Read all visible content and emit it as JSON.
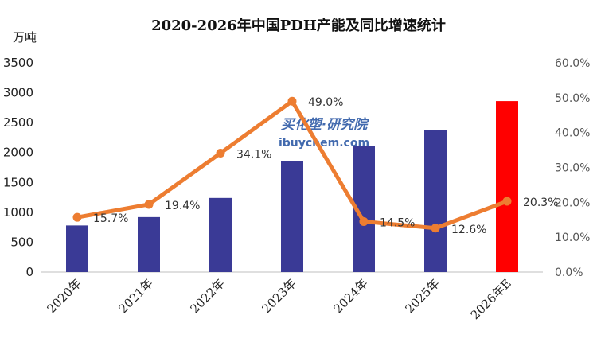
{
  "chart_data": {
    "type": "bar",
    "title": "2020-2026年中国PDH产能及同比增速统计",
    "ylabel": "万吨",
    "categories": [
      "2020年",
      "2021年",
      "2022年",
      "2023年",
      "2024年",
      "2025年",
      "2026年E"
    ],
    "series": [
      {
        "type": "bar",
        "values": [
          780,
          920,
          1240,
          1850,
          2110,
          2380,
          2860
        ],
        "colors": [
          "#3a3a96",
          "#3a3a96",
          "#3a3a96",
          "#3a3a96",
          "#3a3a96",
          "#3a3a96",
          "#ff0000"
        ]
      },
      {
        "type": "line",
        "values": [
          15.7,
          19.4,
          34.1,
          49.0,
          14.5,
          12.6,
          20.3
        ],
        "labels": [
          "15.7%",
          "19.4%",
          "34.1%",
          "49.0%",
          "14.5%",
          "12.6%",
          "20.3%"
        ],
        "color": "#ed7d31",
        "axis": "right"
      }
    ],
    "ylim": [
      0,
      3500
    ],
    "yticks": [
      "0",
      "500",
      "1000",
      "1500",
      "2000",
      "2500",
      "3000",
      "3500"
    ],
    "y2lim": [
      0,
      60
    ],
    "y2ticks": [
      "0.0%",
      "10.0%",
      "20.0%",
      "30.0%",
      "40.0%",
      "50.0%",
      "60.0%"
    ],
    "grid": false,
    "legend": "none"
  },
  "watermark": {
    "cn": "买化塑·研究院",
    "en": "ibuychem.com"
  }
}
